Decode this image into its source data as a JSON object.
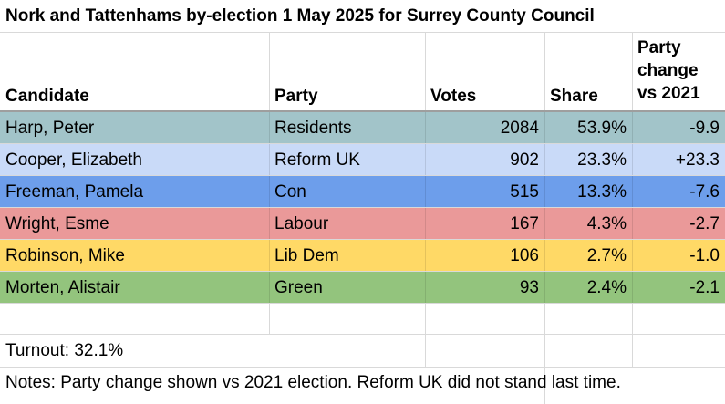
{
  "title": "Nork and Tattenhams by-election 1 May 2025 for Surrey County Council",
  "headers": {
    "candidate": "Candidate",
    "party": "Party",
    "votes": "Votes",
    "share": "Share",
    "change_line1": "Party",
    "change_line2": "change",
    "change_line3": "vs 2021"
  },
  "rows": [
    {
      "candidate": "Harp, Peter",
      "party": "Residents",
      "votes": "2084",
      "share": "53.9%",
      "change": "-9.9",
      "color": "#a2c4c9"
    },
    {
      "candidate": "Cooper, Elizabeth",
      "party": "Reform UK",
      "votes": "902",
      "share": "23.3%",
      "change": "+23.3",
      "color": "#c9daf8"
    },
    {
      "candidate": "Freeman, Pamela",
      "party": "Con",
      "votes": "515",
      "share": "13.3%",
      "change": "-7.6",
      "color": "#6d9eeb"
    },
    {
      "candidate": "Wright, Esme",
      "party": "Labour",
      "votes": "167",
      "share": "4.3%",
      "change": "-2.7",
      "color": "#ea9999"
    },
    {
      "candidate": "Robinson, Mike",
      "party": "Lib Dem",
      "votes": "106",
      "share": "2.7%",
      "change": "-1.0",
      "color": "#ffd966"
    },
    {
      "candidate": "Morten, Alistair",
      "party": "Green",
      "votes": "93",
      "share": "2.4%",
      "change": "-2.1",
      "color": "#93c47d"
    }
  ],
  "turnout": "Turnout: 32.1%",
  "notes": "Notes: Party change shown vs 2021 election.  Reform UK did not stand last time."
}
